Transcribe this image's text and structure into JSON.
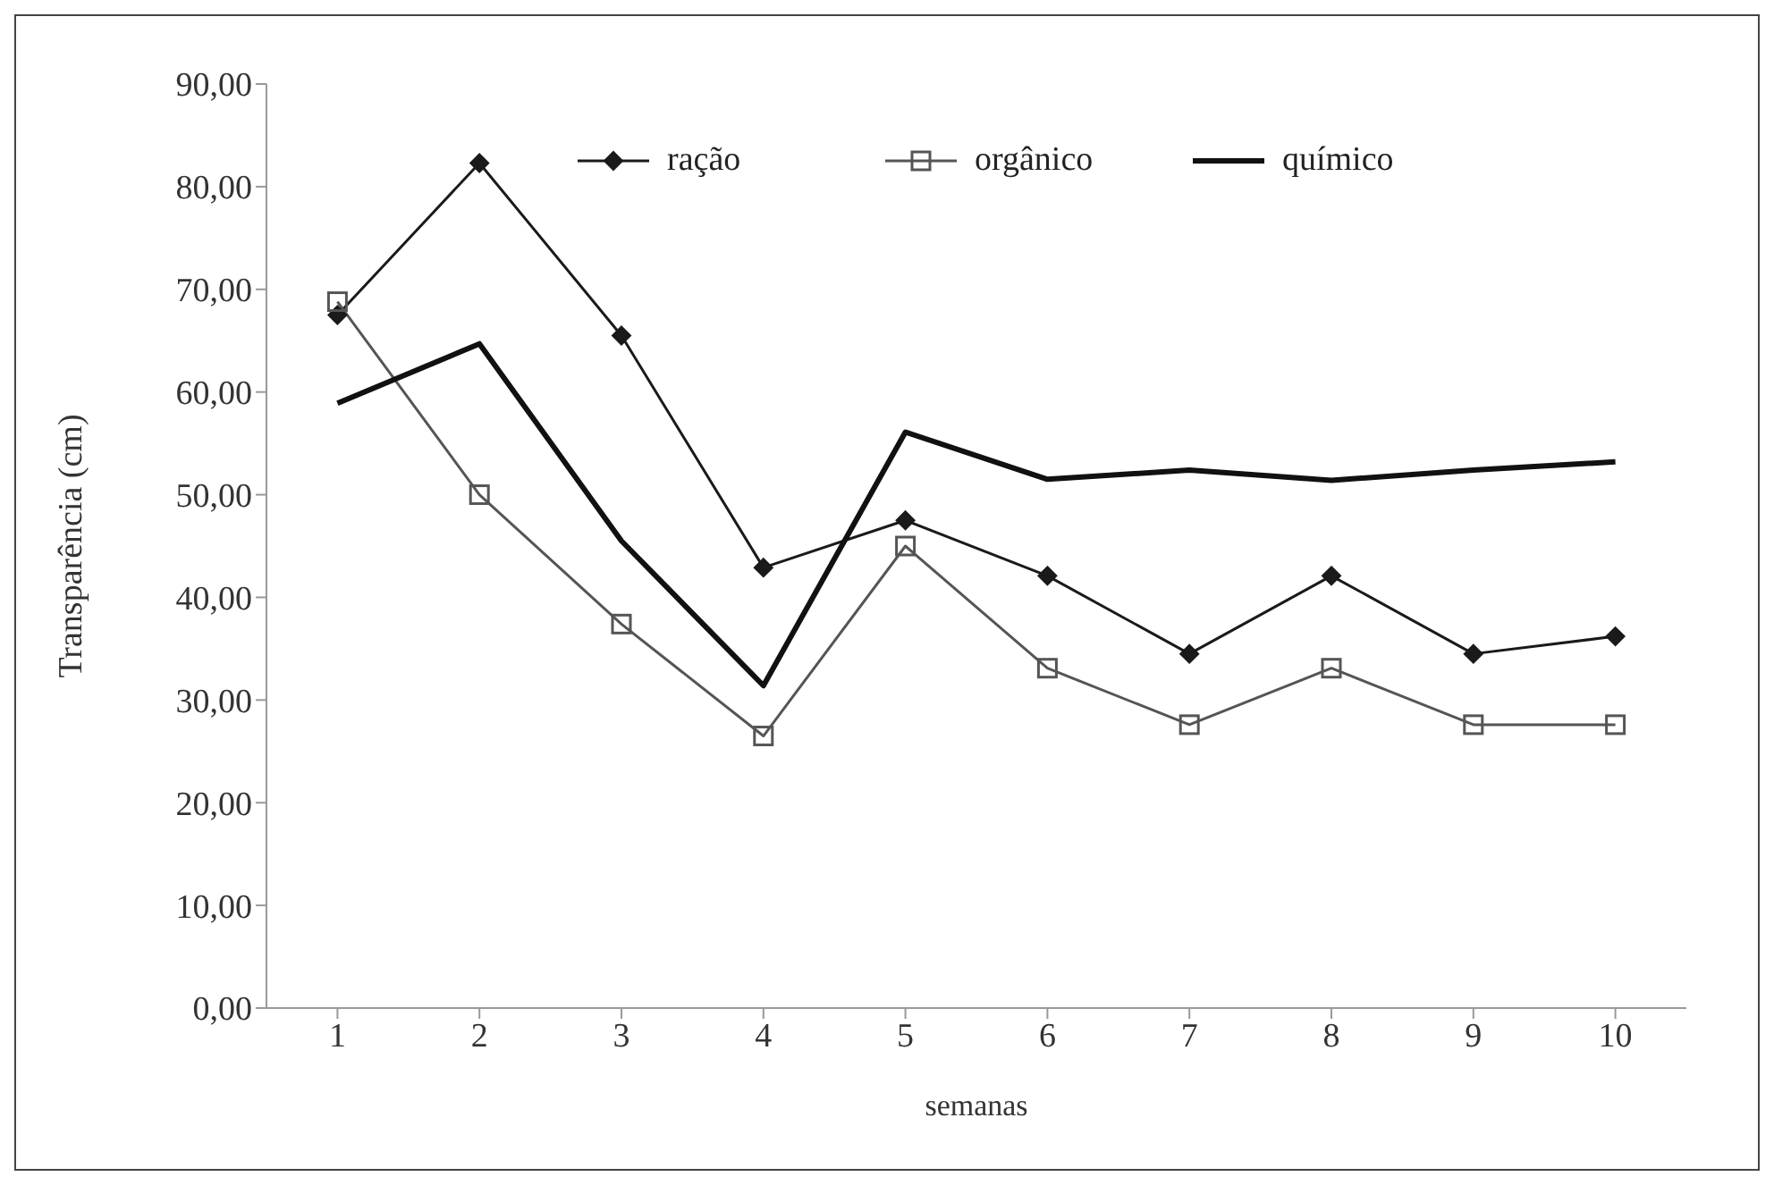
{
  "chart_data": {
    "type": "line",
    "xlabel": "semanas",
    "ylabel": "Transparência  (cm)",
    "categories": [
      "1",
      "2",
      "3",
      "4",
      "5",
      "6",
      "7",
      "8",
      "9",
      "10"
    ],
    "ylim": [
      0,
      90
    ],
    "yticks": [
      {
        "value": 0,
        "label": "0,00"
      },
      {
        "value": 10,
        "label": "10,00"
      },
      {
        "value": 20,
        "label": "20,00"
      },
      {
        "value": 30,
        "label": "30,00"
      },
      {
        "value": 40,
        "label": "40,00"
      },
      {
        "value": 50,
        "label": "50,00"
      },
      {
        "value": 60,
        "label": "60,00"
      },
      {
        "value": 70,
        "label": "70,00"
      },
      {
        "value": 80,
        "label": "80,00"
      },
      {
        "value": 90,
        "label": "90,00"
      }
    ],
    "grid": false,
    "legend": "top",
    "series": [
      {
        "name": "ração",
        "color": "#1a1a1a",
        "marker": "diamond",
        "values": [
          67.5,
          82.3,
          65.5,
          42.9,
          47.5,
          42.1,
          34.5,
          42.1,
          34.5,
          36.2
        ]
      },
      {
        "name": "orgânico",
        "color": "#555555",
        "marker": "square",
        "values": [
          68.8,
          50.0,
          37.4,
          26.5,
          45.0,
          33.1,
          27.6,
          33.1,
          27.6,
          27.6
        ]
      },
      {
        "name": "químico",
        "color": "#111111",
        "marker": "none",
        "values": [
          58.9,
          64.7,
          45.5,
          31.4,
          56.1,
          51.5,
          52.4,
          51.4,
          52.4,
          53.2
        ]
      }
    ]
  }
}
